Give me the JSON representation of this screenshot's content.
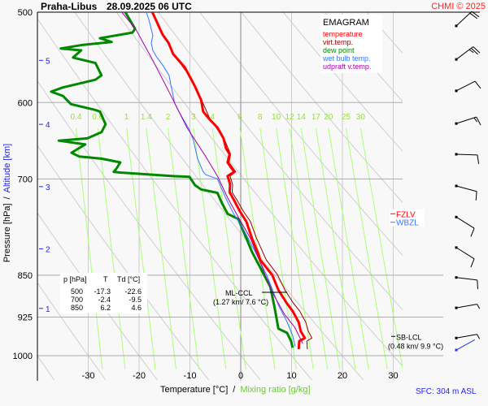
{
  "header": {
    "station": "Praha-Libus",
    "datetime": "28.09.2025 06 UTC",
    "copyright": "CHMI © 2025"
  },
  "legend": {
    "title": "EMAGRAM",
    "items": [
      {
        "label": "temperature",
        "color": "#ff0000"
      },
      {
        "label": "virt.temp.",
        "color": "#990000"
      },
      {
        "label": "dew point",
        "color": "#008800"
      },
      {
        "label": "wet bulb temp.",
        "color": "#3377ff"
      },
      {
        "label": "udpraft v.temp.",
        "color": "#aa00aa"
      }
    ]
  },
  "table": {
    "headers": [
      "p [hPa]",
      "T",
      "Td [°C]"
    ],
    "rows": [
      [
        "500",
        "-17.3",
        "-22.6"
      ],
      [
        "700",
        "-2.4",
        "-9.5"
      ],
      [
        "850",
        "6.2",
        "4.6"
      ]
    ]
  },
  "axes": {
    "xlabel": "Temperature [°C]",
    "xlabel_sep": "/",
    "xlabel2": "Mixing ratio [g/kg]",
    "ylabel": "Pressure [hPa]",
    "ylabel_sep": "/",
    "ylabel2": "Altitude [km]",
    "surface": "SFC: 304 m ASL"
  },
  "chart_data": {
    "type": "line",
    "title": "EMAGRAM",
    "xlim": [
      -40,
      32
    ],
    "ylim": [
      500,
      1050
    ],
    "y_scale": "log",
    "y_inverted": true,
    "grid": true,
    "xticks": [
      -30,
      -20,
      -10,
      0,
      10,
      20,
      30
    ],
    "yticks": [
      500,
      600,
      700,
      850,
      925,
      1000
    ],
    "altitude_ticks": [
      {
        "km": "5",
        "p": 551
      },
      {
        "km": "4",
        "p": 627
      },
      {
        "km": "3",
        "p": 711
      },
      {
        "km": "2",
        "p": 806
      },
      {
        "km": "1",
        "p": 909
      }
    ],
    "mixing_ratio_lines": [
      "0.4",
      "0.6",
      "1",
      "1.4",
      "2",
      "3",
      "4",
      "6",
      "8",
      "10",
      "12",
      "14",
      "17",
      "20",
      "25",
      "30"
    ],
    "mixing_ratio_range_hpa": [
      632,
      1028
    ],
    "dry_adiabat_step_c": 10,
    "series": [
      {
        "name": "temperature",
        "color": "#ff0000",
        "width": 3,
        "points": [
          [
            500,
            -17.4
          ],
          [
            510,
            -16.5
          ],
          [
            523,
            -15.4
          ],
          [
            532,
            -14.2
          ],
          [
            544,
            -13.3
          ],
          [
            559,
            -11.0
          ],
          [
            572,
            -9.8
          ],
          [
            581,
            -9.0
          ],
          [
            597,
            -7.8
          ],
          [
            611,
            -7.4
          ],
          [
            621,
            -6.1
          ],
          [
            631,
            -4.6
          ],
          [
            645,
            -3.4
          ],
          [
            658,
            -2.9
          ],
          [
            666,
            -2.2
          ],
          [
            677,
            -2.6
          ],
          [
            690,
            -1.3
          ],
          [
            696,
            -2.6
          ],
          [
            700,
            -2.4
          ],
          [
            708,
            -2.1
          ],
          [
            719,
            -2.2
          ],
          [
            731,
            -1.3
          ],
          [
            747,
            -0.2
          ],
          [
            763,
            1.1
          ],
          [
            789,
            2.2
          ],
          [
            815,
            3.5
          ],
          [
            824,
            3.8
          ],
          [
            850,
            6.2
          ],
          [
            876,
            7.4
          ],
          [
            899,
            9.0
          ],
          [
            914,
            10.2
          ],
          [
            935,
            11.4
          ],
          [
            952,
            11.8
          ],
          [
            965,
            12.6
          ],
          [
            971,
            11.5
          ],
          [
            987,
            11.4
          ]
        ]
      },
      {
        "name": "virt.temp.",
        "color": "#990000",
        "width": 1,
        "points": [
          [
            500,
            -17.3
          ],
          [
            523,
            -15.3
          ],
          [
            544,
            -13.2
          ],
          [
            572,
            -9.7
          ],
          [
            597,
            -7.7
          ],
          [
            621,
            -6.0
          ],
          [
            645,
            -3.3
          ],
          [
            666,
            -2.0
          ],
          [
            677,
            -2.3
          ],
          [
            690,
            -1.0
          ],
          [
            696,
            -2.1
          ],
          [
            708,
            -1.6
          ],
          [
            719,
            -1.7
          ],
          [
            731,
            -0.7
          ],
          [
            747,
            0.5
          ],
          [
            763,
            1.9
          ],
          [
            789,
            3.1
          ],
          [
            824,
            5.0
          ],
          [
            849,
            7.2
          ],
          [
            876,
            8.7
          ],
          [
            899,
            10.3
          ],
          [
            914,
            11.6
          ],
          [
            935,
            12.8
          ],
          [
            952,
            13.3
          ],
          [
            965,
            14.0
          ],
          [
            971,
            13.0
          ],
          [
            987,
            13.1
          ]
        ]
      },
      {
        "name": "dew point",
        "color": "#008800",
        "width": 3,
        "points": [
          [
            500,
            -22.7
          ],
          [
            517,
            -20.8
          ],
          [
            521,
            -21.3
          ],
          [
            527,
            -27.7
          ],
          [
            531,
            -25.4
          ],
          [
            534,
            -31.0
          ],
          [
            538,
            -35.4
          ],
          [
            540,
            -31.4
          ],
          [
            548,
            -33.0
          ],
          [
            554,
            -28.6
          ],
          [
            568,
            -27.4
          ],
          [
            573,
            -28.6
          ],
          [
            582,
            -35.0
          ],
          [
            587,
            -37.3
          ],
          [
            592,
            -35.0
          ],
          [
            602,
            -33.4
          ],
          [
            609,
            -28.6
          ],
          [
            611,
            -27.7
          ],
          [
            627,
            -26.6
          ],
          [
            637,
            -27.4
          ],
          [
            645,
            -30.2
          ],
          [
            648,
            -35.8
          ],
          [
            653,
            -30.6
          ],
          [
            664,
            -33.3
          ],
          [
            669,
            -31.8
          ],
          [
            672,
            -27.4
          ],
          [
            677,
            -23.7
          ],
          [
            686,
            -24.5
          ],
          [
            690,
            -25.0
          ],
          [
            691,
            -23.7
          ],
          [
            696,
            -13.3
          ],
          [
            697,
            -10.1
          ],
          [
            709,
            -9.0
          ],
          [
            715,
            -7.8
          ],
          [
            720,
            -4.6
          ],
          [
            735,
            -3.7
          ],
          [
            751,
            -2.6
          ],
          [
            759,
            -0.5
          ],
          [
            789,
            1.1
          ],
          [
            811,
            2.2
          ],
          [
            850,
            4.6
          ],
          [
            870,
            5.8
          ],
          [
            905,
            6.6
          ],
          [
            947,
            7.4
          ],
          [
            955,
            9.1
          ],
          [
            971,
            9.9
          ],
          [
            984,
            10.2
          ]
        ]
      },
      {
        "name": "wet bulb temp.",
        "color": "#3377ff",
        "width": 1,
        "points": [
          [
            500,
            -18.6
          ],
          [
            507,
            -18.1
          ],
          [
            524,
            -17.3
          ],
          [
            532,
            -17.6
          ],
          [
            540,
            -17.3
          ],
          [
            547,
            -16.6
          ],
          [
            556,
            -15.4
          ],
          [
            568,
            -14.1
          ],
          [
            578,
            -13.8
          ],
          [
            589,
            -13.4
          ],
          [
            601,
            -13.0
          ],
          [
            611,
            -12.2
          ],
          [
            634,
            -10.1
          ],
          [
            648,
            -9.3
          ],
          [
            672,
            -8.5
          ],
          [
            690,
            -7.4
          ],
          [
            694,
            -6.9
          ],
          [
            700,
            -4.6
          ],
          [
            727,
            -3.0
          ],
          [
            751,
            -1.4
          ],
          [
            776,
            0.6
          ],
          [
            807,
            2.6
          ],
          [
            850,
            5.1
          ],
          [
            905,
            7.5
          ],
          [
            932,
            9.0
          ],
          [
            960,
            10.2
          ],
          [
            982,
            10.7
          ]
        ]
      },
      {
        "name": "udpraft v.temp.",
        "color": "#aa00aa",
        "width": 1,
        "points": [
          [
            500,
            -23.4
          ],
          [
            518,
            -20.6
          ],
          [
            550,
            -17.4
          ],
          [
            578,
            -14.9
          ],
          [
            597,
            -13.3
          ],
          [
            631,
            -10.6
          ],
          [
            669,
            -6.9
          ],
          [
            696,
            -4.6
          ],
          [
            727,
            -2.6
          ],
          [
            756,
            -0.5
          ],
          [
            789,
            1.9
          ],
          [
            880,
            6.2
          ],
          [
            920,
            8.6
          ],
          [
            944,
            10.6
          ],
          [
            976,
            12.2
          ]
        ]
      }
    ],
    "annotations": {
      "ml_ccl": {
        "label": "ML-CCL",
        "detail": "(1.27 km/ 7.6 °C)",
        "p": 880,
        "t": 7.6
      },
      "sb_lcl": {
        "label": "SB-LCL",
        "detail": "(0.48 km/ 9.9 °C)",
        "p": 965
      },
      "fzlv": {
        "label": "FZLV",
        "color": "#ff0000",
        "p": 751
      },
      "wbzl": {
        "label": "WBZL",
        "color": "#3377ff",
        "p": 764
      }
    },
    "wind_barbs": [
      {
        "p": 514,
        "dir": 47,
        "kt": 20
      },
      {
        "p": 550,
        "dir": 53,
        "kt": 25
      },
      {
        "p": 586,
        "dir": 63,
        "kt": 10
      },
      {
        "p": 626,
        "dir": 72,
        "kt": 15
      },
      {
        "p": 666,
        "dir": 92,
        "kt": 10
      },
      {
        "p": 710,
        "dir": 105,
        "kt": 10
      },
      {
        "p": 756,
        "dir": 122,
        "kt": 10
      },
      {
        "p": 804,
        "dir": 122,
        "kt": 10
      },
      {
        "p": 854,
        "dir": 97,
        "kt": 10
      },
      {
        "p": 908,
        "dir": 80,
        "kt": 5
      },
      {
        "p": 965,
        "dir": 80,
        "kt": 5
      },
      {
        "p": 987,
        "dir": 61,
        "kt": 2,
        "surface": true,
        "color": "#2233ee"
      }
    ]
  }
}
